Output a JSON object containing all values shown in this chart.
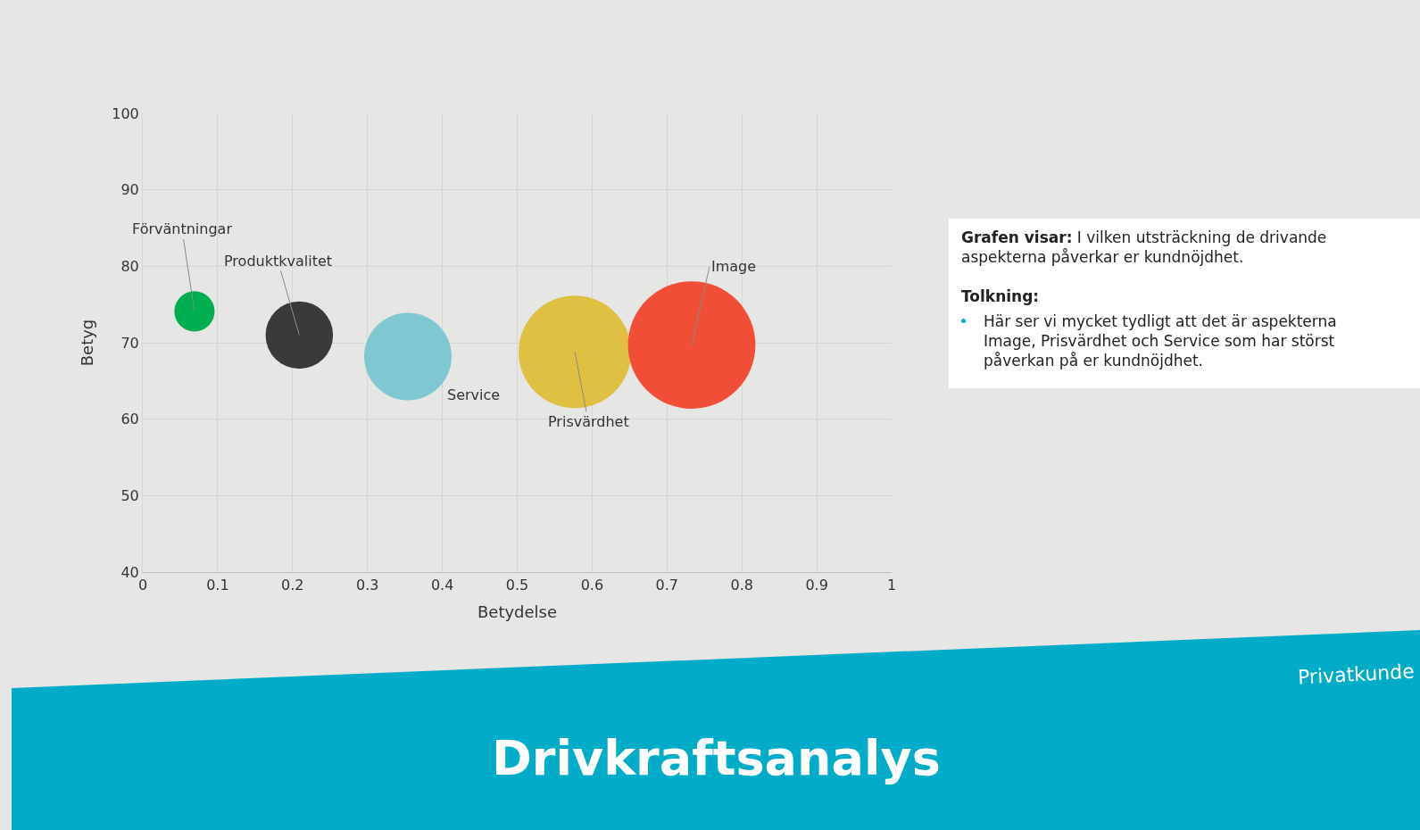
{
  "chart_data": {
    "type": "bubble",
    "title": "Drivkraftsanalys",
    "xlabel": "Betydelse",
    "ylabel": "Betyg",
    "series": [
      {
        "name": "Förväntningar",
        "color": "#00b050",
        "x": [
          0.069
        ],
        "values": [
          74.1
        ],
        "sizes": [
          0.1
        ]
      },
      {
        "name": "Produktkvalitet",
        "color": "#3a3a3a",
        "x": [
          0.209
        ],
        "values": [
          71.0
        ],
        "sizes": [
          0.28
        ]
      },
      {
        "name": "Service",
        "color": "#7fc8d2",
        "x": [
          0.354
        ],
        "values": [
          68.2
        ],
        "sizes": [
          0.47
        ]
      },
      {
        "name": "Prisvärdhet",
        "color": "#dfc043",
        "x": [
          0.577
        ],
        "values": [
          68.8
        ],
        "sizes": [
          0.78
        ]
      },
      {
        "name": "Image",
        "color": "#f04e37",
        "x": [
          0.733
        ],
        "values": [
          69.7
        ],
        "sizes": [
          1
        ]
      }
    ],
    "xlim": [
      0,
      1
    ],
    "ylim": [
      40,
      100
    ],
    "xticks": [
      0,
      0.1,
      0.2,
      0.3,
      0.4,
      0.5,
      0.6,
      0.7,
      0.8,
      0.9,
      1
    ],
    "yticks": [
      40,
      50,
      60,
      70,
      80,
      90,
      100
    ],
    "grid": true,
    "legend": false,
    "annotations": [
      "Grafen visar: I vilken utsträckning de drivande aspekterna påverkar er kundnöjdhet.",
      "Tolkning:",
      "Här ser vi mycket tydligt att det är aspekterna Image, Prisvärdhet och Service som har störst påverkan på er kundnöjdhet.",
      "Privatkunde"
    ]
  }
}
